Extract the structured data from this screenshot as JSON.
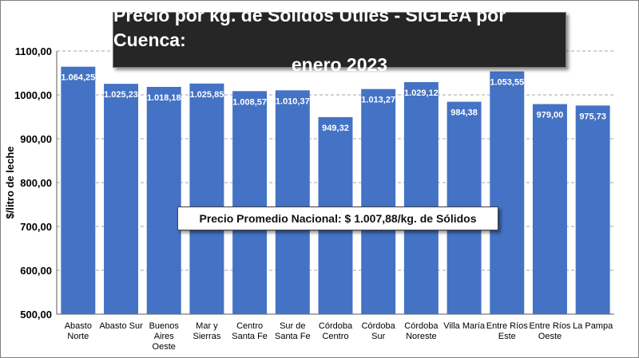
{
  "chart_data": {
    "type": "bar",
    "title_line1": "Precio por kg. de Sólidos Útiles - SIGLeA por Cuenca:",
    "title_line2": "enero 2023",
    "ylabel": "$/litro de leche",
    "xlabel": "",
    "ylim": [
      500,
      1100
    ],
    "yticks": [
      500,
      600,
      700,
      800,
      900,
      1000,
      1100
    ],
    "ytick_labels": [
      "500,00",
      "600,00",
      "700,00",
      "800,00",
      "900,00",
      "1000,00",
      "1100,00"
    ],
    "grid": true,
    "categories": [
      [
        "Abasto",
        "Norte"
      ],
      [
        "Abasto Sur"
      ],
      [
        "Buenos",
        "Aires",
        "Oeste"
      ],
      [
        "Mar y",
        "Sierras"
      ],
      [
        "Centro",
        "Santa Fe"
      ],
      [
        "Sur de",
        "Santa Fe"
      ],
      [
        "Córdoba",
        "Centro"
      ],
      [
        "Córdoba",
        "Sur"
      ],
      [
        "Córdoba",
        "Noreste"
      ],
      [
        "Villa María"
      ],
      [
        "Entre Ríos",
        "Este"
      ],
      [
        "Entre Ríos",
        "Oeste"
      ],
      [
        "La Pampa"
      ]
    ],
    "values": [
      1064.25,
      1025.23,
      1018.18,
      1025.85,
      1008.57,
      1010.37,
      949.32,
      1013.27,
      1029.12,
      984.38,
      1053.55,
      979.0,
      975.73
    ],
    "value_labels": [
      "1.064,25",
      "1.025,23",
      "1.018,18",
      "1.025,85",
      "1.008,57",
      "1.010,37",
      "949,32",
      "1.013,27",
      "1.029,12",
      "984,38",
      "1.053,55",
      "979,00",
      "975,73"
    ],
    "annotation": "Precio Promedio Nacional: $ 1.007,88/kg. de Sólidos",
    "bar_color": "#4472c4"
  }
}
